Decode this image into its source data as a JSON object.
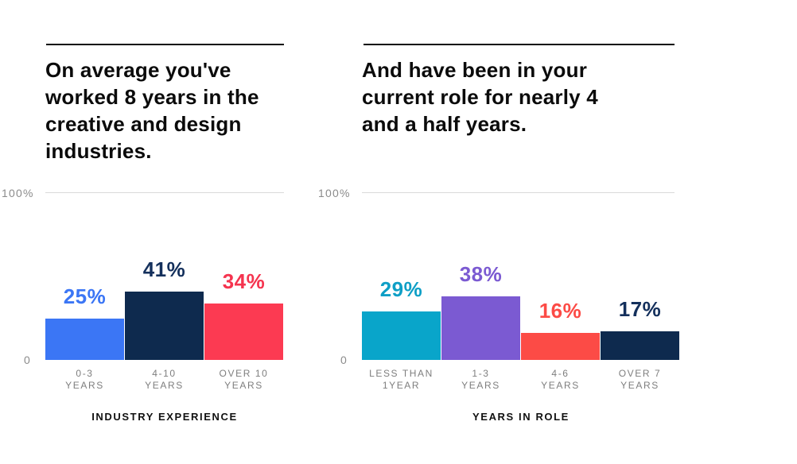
{
  "page": {
    "background": "#ffffff"
  },
  "chart_data": [
    {
      "type": "bar",
      "title": "On average you've worked 8 years in the creative and design industries.",
      "categories": [
        "0-3\nYEARS",
        "4-10\nYEARS",
        "OVER 10\nYEARS"
      ],
      "values": [
        25,
        41,
        34
      ],
      "value_labels": [
        "25%",
        "41%",
        "34%"
      ],
      "bar_colors": [
        "#3b76f5",
        "#0e2a4e",
        "#fc3a52"
      ],
      "value_label_colors": [
        "#3b76f5",
        "#14305c",
        "#f5344f"
      ],
      "xlabel": "INDUSTRY EXPERIENCE",
      "ylabel": "",
      "ylim": [
        0,
        100
      ],
      "ytick_labels": {
        "top": "100%",
        "bottom": "0"
      },
      "grid": "single light gridline at 100% only",
      "legend": "none"
    },
    {
      "type": "bar",
      "title": "And have been in your current role for nearly 4 and a half years.",
      "categories": [
        "LESS THAN\n1YEAR",
        "1-3\nYEARS",
        "4-6\nYEARS",
        "OVER 7\nYEARS"
      ],
      "values": [
        29,
        38,
        16,
        17
      ],
      "value_labels": [
        "29%",
        "38%",
        "16%",
        "17%"
      ],
      "bar_colors": [
        "#09a5ca",
        "#7b5ad2",
        "#fc4b46",
        "#0e2a4e"
      ],
      "value_label_colors": [
        "#0e9fc6",
        "#7b5ad2",
        "#fc4b46",
        "#14305c"
      ],
      "xlabel": "YEARS IN ROLE",
      "ylabel": "",
      "ylim": [
        0,
        100
      ],
      "ytick_labels": {
        "top": "100%",
        "bottom": "0"
      },
      "grid": "single light gridline at 100% only",
      "legend": "none"
    }
  ]
}
